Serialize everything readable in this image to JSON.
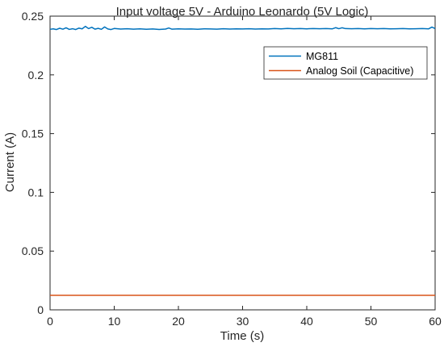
{
  "chart_data": {
    "type": "line",
    "title": "Input voltage 5V - Arduino Leonardo (5V Logic)",
    "xlabel": "Time (s)",
    "ylabel": "Current (A)",
    "xlim": [
      0,
      60
    ],
    "ylim": [
      0,
      0.25
    ],
    "xticks": [
      0,
      10,
      20,
      30,
      40,
      50,
      60
    ],
    "xtick_labels": [
      "0",
      "10",
      "20",
      "30",
      "40",
      "50",
      "60"
    ],
    "yticks": [
      0,
      0.05,
      0.1,
      0.15,
      0.2,
      0.25
    ],
    "ytick_labels": [
      "0",
      "0.05",
      "0.1",
      "0.15",
      "0.2",
      "0.25"
    ],
    "grid": false,
    "legend_position": "top-right",
    "series": [
      {
        "name": "MG811",
        "color": "#0072BD",
        "x": [
          0,
          0.5,
          1,
          1.5,
          2,
          2.5,
          3,
          3.5,
          4,
          4.5,
          5,
          5.5,
          6,
          6.5,
          7,
          7.5,
          8,
          8.5,
          9,
          9.5,
          10,
          11,
          12,
          13,
          14,
          15,
          16,
          17,
          18,
          18.5,
          19,
          20,
          21,
          22,
          23,
          24,
          25,
          26,
          27,
          28,
          29,
          30,
          31,
          32,
          33,
          34,
          35,
          36,
          37,
          38,
          39,
          40,
          41,
          42,
          43,
          44,
          44.5,
          45,
          45.5,
          46,
          47,
          48,
          49,
          50,
          51,
          52,
          53,
          54,
          55,
          56,
          57,
          58,
          59,
          59.5,
          60
        ],
        "y": [
          0.2388,
          0.2392,
          0.2386,
          0.2397,
          0.2389,
          0.2401,
          0.2387,
          0.2393,
          0.2386,
          0.2398,
          0.2392,
          0.2413,
          0.2394,
          0.2405,
          0.2389,
          0.2396,
          0.2388,
          0.2408,
          0.2391,
          0.2386,
          0.2395,
          0.239,
          0.2393,
          0.2389,
          0.2392,
          0.2388,
          0.2391,
          0.2387,
          0.239,
          0.2399,
          0.2389,
          0.2392,
          0.239,
          0.2391,
          0.2388,
          0.2392,
          0.2391,
          0.2389,
          0.2393,
          0.239,
          0.2392,
          0.2391,
          0.2393,
          0.239,
          0.2392,
          0.2391,
          0.2394,
          0.2392,
          0.2395,
          0.2393,
          0.2394,
          0.2392,
          0.2394,
          0.2393,
          0.2394,
          0.2392,
          0.2402,
          0.2393,
          0.2401,
          0.2394,
          0.2393,
          0.2394,
          0.2392,
          0.2394,
          0.2393,
          0.2394,
          0.2392,
          0.2393,
          0.2394,
          0.2392,
          0.2393,
          0.2394,
          0.2392,
          0.2407,
          0.2394
        ]
      },
      {
        "name": "Analog Soil (Capacitive)",
        "color": "#D95319",
        "x": [
          0,
          10,
          20,
          30,
          40,
          50,
          60
        ],
        "y": [
          0.0124,
          0.0124,
          0.0124,
          0.0124,
          0.0124,
          0.0124,
          0.0124
        ]
      }
    ]
  }
}
